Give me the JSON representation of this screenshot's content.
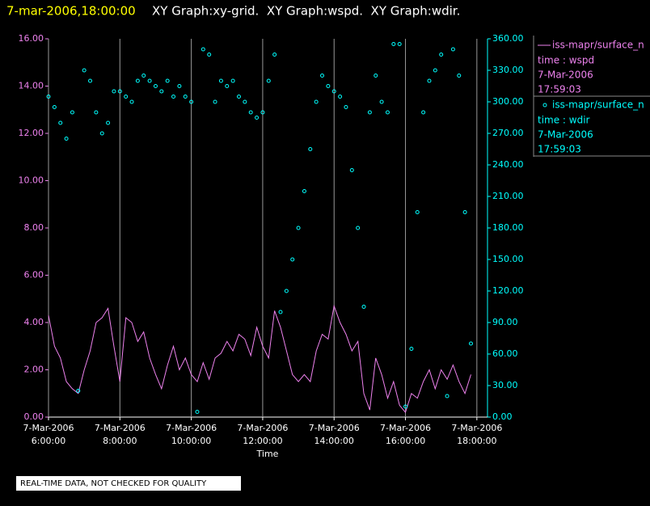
{
  "header": {
    "timestamp": "7-mar-2006,18:00:00",
    "graphs": "XY Graph:xy-grid.  XY Graph:wspd.  XY Graph:wdir."
  },
  "footer": "REAL-TIME DATA, NOT CHECKED FOR QUALITY",
  "chart_data": {
    "type": "line",
    "xlabel": "Time",
    "xlim": [
      "2006-03-07T06:00",
      "2006-03-07T18:07"
    ],
    "xticks": [
      {
        "value": "2006-03-07T06:00",
        "label": [
          "7-Mar-2006",
          "6:00:00"
        ]
      },
      {
        "value": "2006-03-07T08:00",
        "label": [
          "7-Mar-2006",
          "8:00:00"
        ]
      },
      {
        "value": "2006-03-07T10:00",
        "label": [
          "7-Mar-2006",
          "10:00:00"
        ]
      },
      {
        "value": "2006-03-07T12:00",
        "label": [
          "7-Mar-2006",
          "12:00:00"
        ]
      },
      {
        "value": "2006-03-07T14:00",
        "label": [
          "7-Mar-2006",
          "14:00:00"
        ]
      },
      {
        "value": "2006-03-07T16:00",
        "label": [
          "7-Mar-2006",
          "16:00:00"
        ]
      },
      {
        "value": "2006-03-07T18:00",
        "label": [
          "7-Mar-2006",
          "18:00:00"
        ]
      }
    ],
    "ylim": [
      0,
      16
    ],
    "yticks": [
      {
        "value": 0,
        "label": "0.00"
      },
      {
        "value": 2,
        "label": "2.00"
      },
      {
        "value": 4,
        "label": "4.00"
      },
      {
        "value": 6,
        "label": "6.00"
      },
      {
        "value": 8,
        "label": "8.00"
      },
      {
        "value": 10,
        "label": "10.00"
      },
      {
        "value": 12,
        "label": "12.00"
      },
      {
        "value": 14,
        "label": "14.00"
      },
      {
        "value": 16,
        "label": "16.00"
      }
    ],
    "y2lim": [
      0,
      360
    ],
    "y2ticks": [
      {
        "value": 0,
        "label": "0.00"
      },
      {
        "value": 30,
        "label": "30.00"
      },
      {
        "value": 60,
        "label": "60.00"
      },
      {
        "value": 90,
        "label": "90.00"
      },
      {
        "value": 120,
        "label": "120.00"
      },
      {
        "value": 150,
        "label": "150.00"
      },
      {
        "value": 180,
        "label": "180.00"
      },
      {
        "value": 210,
        "label": "210.00"
      },
      {
        "value": 240,
        "label": "240.00"
      },
      {
        "value": 270,
        "label": "270.00"
      },
      {
        "value": 300,
        "label": "300.00"
      },
      {
        "value": 330,
        "label": "330.00"
      },
      {
        "value": 360,
        "label": "360.00"
      }
    ],
    "grid": "x",
    "x": [
      "2006-03-07T06:00",
      "2006-03-07T06:10",
      "2006-03-07T06:20",
      "2006-03-07T06:30",
      "2006-03-07T06:40",
      "2006-03-07T06:50",
      "2006-03-07T07:00",
      "2006-03-07T07:10",
      "2006-03-07T07:20",
      "2006-03-07T07:30",
      "2006-03-07T07:40",
      "2006-03-07T07:50",
      "2006-03-07T08:00",
      "2006-03-07T08:10",
      "2006-03-07T08:20",
      "2006-03-07T08:30",
      "2006-03-07T08:40",
      "2006-03-07T08:50",
      "2006-03-07T09:00",
      "2006-03-07T09:10",
      "2006-03-07T09:20",
      "2006-03-07T09:30",
      "2006-03-07T09:40",
      "2006-03-07T09:50",
      "2006-03-07T10:00",
      "2006-03-07T10:10",
      "2006-03-07T10:20",
      "2006-03-07T10:30",
      "2006-03-07T10:40",
      "2006-03-07T10:50",
      "2006-03-07T11:00",
      "2006-03-07T11:10",
      "2006-03-07T11:20",
      "2006-03-07T11:30",
      "2006-03-07T11:40",
      "2006-03-07T11:50",
      "2006-03-07T12:00",
      "2006-03-07T12:10",
      "2006-03-07T12:20",
      "2006-03-07T12:30",
      "2006-03-07T12:40",
      "2006-03-07T12:50",
      "2006-03-07T13:00",
      "2006-03-07T13:10",
      "2006-03-07T13:20",
      "2006-03-07T13:30",
      "2006-03-07T13:40",
      "2006-03-07T13:50",
      "2006-03-07T14:00",
      "2006-03-07T14:10",
      "2006-03-07T14:20",
      "2006-03-07T14:30",
      "2006-03-07T14:40",
      "2006-03-07T14:50",
      "2006-03-07T15:00",
      "2006-03-07T15:10",
      "2006-03-07T15:20",
      "2006-03-07T15:30",
      "2006-03-07T15:40",
      "2006-03-07T15:50",
      "2006-03-07T16:00",
      "2006-03-07T16:10",
      "2006-03-07T16:20",
      "2006-03-07T16:30",
      "2006-03-07T16:40",
      "2006-03-07T16:50",
      "2006-03-07T17:00",
      "2006-03-07T17:10",
      "2006-03-07T17:20",
      "2006-03-07T17:30",
      "2006-03-07T17:40",
      "2006-03-07T17:50"
    ],
    "series": [
      {
        "name": "iss-mapr/surface_n",
        "legend_lines": [
          "time : wspd",
          "7-Mar-2006",
          "17:59:03"
        ],
        "color": "#ee82ee",
        "mark": "line",
        "values": [
          4.3,
          3.0,
          2.5,
          1.5,
          1.2,
          1.0,
          2.0,
          2.8,
          4.0,
          4.2,
          4.6,
          3.0,
          1.5,
          4.2,
          4.0,
          3.2,
          3.6,
          2.5,
          1.8,
          1.2,
          2.2,
          3.0,
          2.0,
          2.5,
          1.8,
          1.5,
          2.3,
          1.6,
          2.5,
          2.7,
          3.2,
          2.8,
          3.5,
          3.3,
          2.6,
          3.8,
          3.0,
          2.5,
          4.5,
          3.8,
          2.8,
          1.8,
          1.5,
          1.8,
          1.5,
          2.8,
          3.5,
          3.3,
          4.7,
          4.0,
          3.5,
          2.8,
          3.2,
          1.0,
          0.3,
          2.5,
          1.8,
          0.8,
          1.5,
          0.5,
          0.2,
          1.0,
          0.8,
          1.5,
          2.0,
          1.2,
          2.0,
          1.6,
          2.2,
          1.5,
          1.0,
          1.8
        ]
      },
      {
        "name": "iss-mapr/surface_n",
        "legend_lines": [
          "time : wdir",
          "7-Mar-2006",
          "17:59:03"
        ],
        "color": "#00ffff",
        "mark": "scatter",
        "axis": "y2",
        "values": [
          305,
          295,
          280,
          265,
          290,
          25,
          330,
          320,
          290,
          270,
          280,
          310,
          310,
          305,
          300,
          320,
          325,
          320,
          315,
          310,
          320,
          305,
          315,
          305,
          300,
          5,
          350,
          345,
          300,
          320,
          315,
          320,
          305,
          300,
          290,
          285,
          290,
          320,
          345,
          100,
          120,
          150,
          180,
          215,
          255,
          300,
          325,
          315,
          310,
          305,
          295,
          235,
          180,
          105,
          290,
          325,
          300,
          290,
          355,
          355,
          10,
          65,
          195,
          290,
          320,
          330,
          345,
          20,
          350,
          325,
          195,
          70
        ]
      }
    ]
  }
}
